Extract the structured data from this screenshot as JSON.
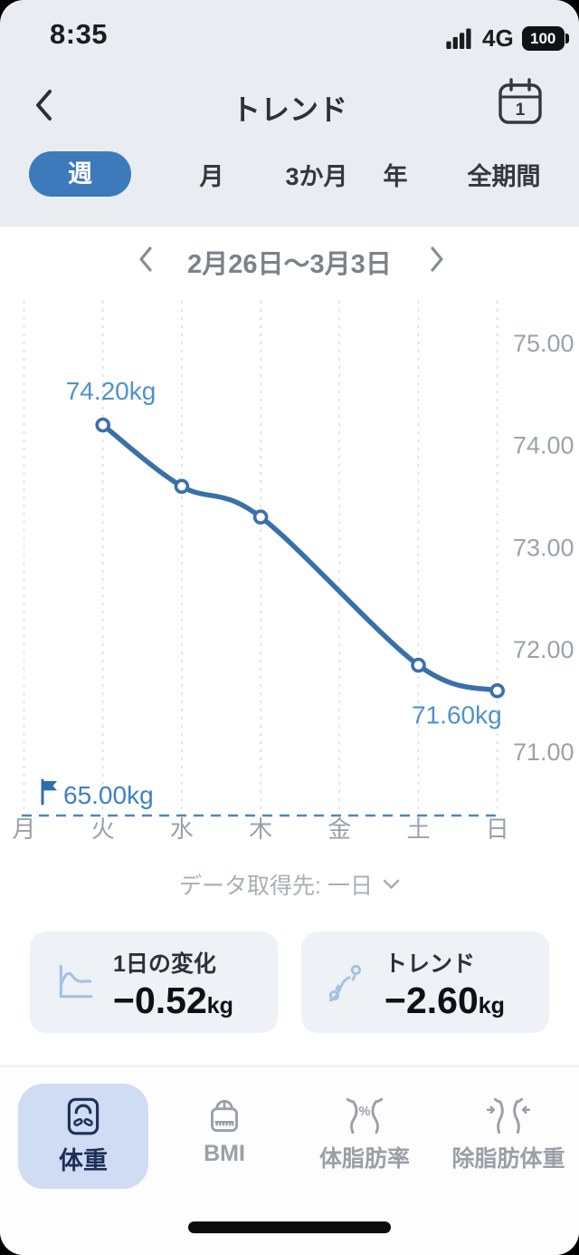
{
  "status_bar": {
    "time": "8:35",
    "network": "4G",
    "battery_percent": "100"
  },
  "header": {
    "title": "トレンド",
    "calendar_day": "1"
  },
  "period_tabs": [
    {
      "label": "週",
      "selected": true
    },
    {
      "label": "月",
      "selected": false
    },
    {
      "label": "3か月",
      "selected": false
    },
    {
      "label": "年",
      "selected": false
    },
    {
      "label": "全期間",
      "selected": false
    }
  ],
  "date_nav": {
    "range_label": "2月26日〜3月3日"
  },
  "chart_data": {
    "type": "line",
    "title": "",
    "x_labels": [
      "月",
      "火",
      "水",
      "木",
      "金",
      "土",
      "日"
    ],
    "y_tick_labels": [
      "75.00",
      "74.00",
      "73.00",
      "72.00",
      "71.00"
    ],
    "ylim": [
      70.4,
      75.5
    ],
    "points": [
      {
        "day": "火",
        "kg": 74.2
      },
      {
        "day": "水",
        "kg": 73.6
      },
      {
        "day": "木",
        "kg": 73.3
      },
      {
        "day": "土",
        "kg": 71.85
      },
      {
        "day": "日",
        "kg": 71.6
      }
    ],
    "first_point_label": "74.20kg",
    "last_point_label": "71.60kg",
    "goal_label": "65.00kg",
    "goal_value": 65.0,
    "line_color": "#3a70aa",
    "grid": "vertical-dashed",
    "legend": "none"
  },
  "source_selector": {
    "label": "データ取得先: 一日"
  },
  "stat_cards": [
    {
      "title": "1日の変化",
      "value": "−0.52",
      "unit": "kg"
    },
    {
      "title": "トレンド",
      "value": "−2.60",
      "unit": "kg"
    }
  ],
  "bottom_nav": [
    {
      "label": "体重",
      "selected": true
    },
    {
      "label": "BMI",
      "selected": false
    },
    {
      "label": "体脂肪率",
      "selected": false
    },
    {
      "label": "除脂肪体重",
      "selected": false
    }
  ],
  "colors": {
    "accent_blue": "#3c7abc",
    "line_blue": "#3a70aa",
    "point_label_blue": "#4e93ca",
    "goal_blue": "#3f81c3",
    "selected_nav_bg": "#cfdcf4",
    "navy": "#1e3057"
  }
}
